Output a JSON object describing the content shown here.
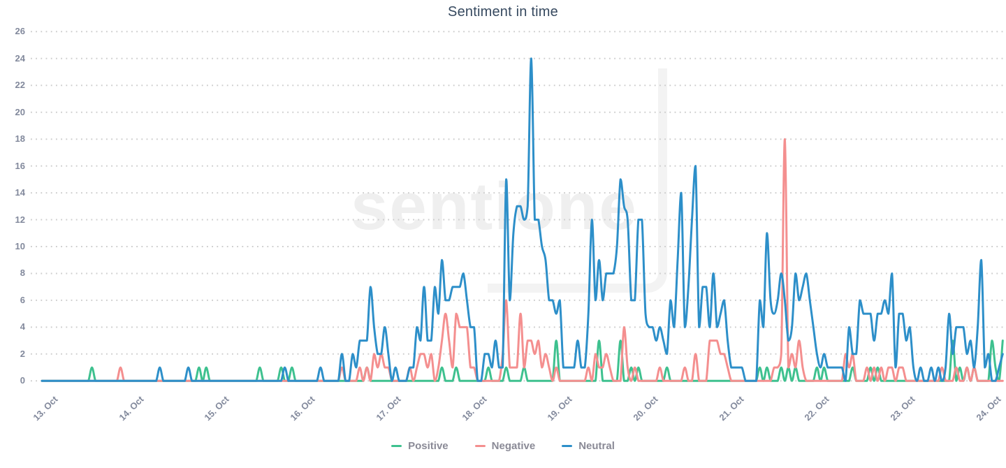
{
  "watermark": {
    "text": "sentione"
  },
  "chart_data": {
    "type": "line",
    "title": "Sentiment in time",
    "xlabel": "",
    "ylabel": "",
    "x_tick_labels": [
      "13. Oct",
      "14. Oct",
      "15. Oct",
      "16. Oct",
      "17. Oct",
      "18. Oct",
      "19. Oct",
      "20. Oct",
      "21. Oct",
      "22. Oct",
      "23. Oct",
      "24. Oct"
    ],
    "points_per_day": 24,
    "x_unit": "hour",
    "y_ticks": [
      0,
      2,
      4,
      6,
      8,
      10,
      12,
      14,
      16,
      18,
      20,
      22,
      24,
      26
    ],
    "ylim": [
      0,
      26
    ],
    "grid": "dotted-horizontal",
    "grid_color": "#cdcdcd",
    "legend_position": "bottom",
    "series": [
      {
        "name": "Positive",
        "color": "#3ec18f",
        "values": [
          0,
          0,
          0,
          0,
          0,
          0,
          0,
          0,
          0,
          0,
          0,
          0,
          0,
          0,
          1,
          0,
          0,
          0,
          0,
          0,
          0,
          0,
          0,
          0,
          0,
          0,
          0,
          0,
          0,
          0,
          0,
          0,
          0,
          0,
          0,
          0,
          0,
          0,
          0,
          0,
          0,
          0,
          0,
          0,
          1,
          0,
          1,
          0,
          0,
          0,
          0,
          0,
          0,
          0,
          0,
          0,
          0,
          0,
          0,
          0,
          0,
          1,
          0,
          0,
          0,
          0,
          0,
          1,
          0,
          0,
          1,
          0,
          0,
          0,
          0,
          0,
          0,
          0,
          0,
          0,
          0,
          0,
          0,
          0,
          0,
          0,
          0,
          0,
          0,
          0,
          0,
          1,
          0,
          0,
          0,
          0,
          0,
          0,
          0,
          0,
          0,
          0,
          0,
          0,
          0,
          0,
          0,
          0,
          0,
          0,
          0,
          0,
          1,
          0,
          0,
          0,
          1,
          0,
          0,
          0,
          0,
          0,
          0,
          0,
          0,
          1,
          0,
          0,
          0,
          0,
          1,
          0,
          0,
          0,
          0,
          1,
          0,
          0,
          0,
          0,
          0,
          0,
          0,
          0,
          3,
          0,
          0,
          0,
          0,
          0,
          0,
          0,
          0,
          0,
          0,
          0,
          3,
          0,
          0,
          0,
          0,
          0,
          3,
          0,
          0,
          1,
          0,
          1,
          0,
          0,
          0,
          0,
          0,
          0,
          0,
          1,
          0,
          0,
          0,
          0,
          0,
          0,
          0,
          0,
          0,
          0,
          0,
          0,
          0,
          0,
          0,
          0,
          0,
          0,
          0,
          0,
          0,
          0,
          0,
          0,
          0,
          1,
          0,
          1,
          0,
          0,
          0,
          1,
          0,
          1,
          0,
          1,
          0,
          0,
          0,
          0,
          0,
          1,
          0,
          1,
          0,
          0,
          0,
          0,
          0,
          0,
          0,
          1,
          0,
          0,
          0,
          0,
          1,
          0,
          1,
          0,
          0,
          0,
          0,
          0,
          0,
          0,
          0,
          0,
          0,
          0,
          0,
          0,
          0,
          0,
          0,
          0,
          0,
          0,
          0,
          3,
          0,
          1,
          0,
          1,
          0,
          1,
          0,
          0,
          0,
          0,
          3,
          1,
          0,
          3
        ]
      },
      {
        "name": "Negative",
        "color": "#f48f8f",
        "values": [
          0,
          0,
          0,
          0,
          0,
          0,
          0,
          0,
          0,
          0,
          0,
          0,
          0,
          0,
          0,
          0,
          0,
          0,
          0,
          0,
          0,
          0,
          1,
          0,
          0,
          0,
          0,
          0,
          0,
          0,
          0,
          0,
          0,
          0,
          0,
          0,
          0,
          0,
          0,
          0,
          0,
          0,
          0,
          0,
          0,
          0,
          0,
          0,
          0,
          0,
          0,
          0,
          0,
          0,
          0,
          0,
          0,
          0,
          0,
          0,
          0,
          0,
          0,
          0,
          0,
          0,
          0,
          0,
          0,
          0,
          0,
          0,
          0,
          0,
          0,
          0,
          0,
          0,
          0,
          0,
          0,
          0,
          0,
          0,
          1,
          0,
          0,
          0,
          0,
          1,
          0,
          1,
          0,
          2,
          1,
          2,
          1,
          1,
          0,
          0,
          0,
          0,
          0,
          1,
          0,
          1,
          2,
          2,
          1,
          2,
          0,
          1,
          3,
          5,
          3,
          1,
          5,
          4,
          4,
          4,
          1,
          1,
          0,
          0,
          0,
          0,
          0,
          0,
          0,
          2,
          6,
          1,
          1,
          1,
          5,
          1,
          3,
          3,
          2,
          3,
          1,
          2,
          1,
          0,
          1,
          0,
          0,
          0,
          0,
          0,
          0,
          0,
          0,
          1,
          0,
          2,
          1,
          1,
          2,
          1,
          0,
          0,
          0,
          4,
          1,
          0,
          1,
          0,
          0,
          0,
          0,
          0,
          0,
          1,
          0,
          0,
          0,
          0,
          0,
          0,
          1,
          0,
          0,
          2,
          0,
          0,
          0,
          3,
          3,
          3,
          2,
          2,
          1,
          0,
          0,
          0,
          0,
          0,
          0,
          0,
          0,
          0,
          0,
          0,
          0,
          1,
          1,
          2,
          18,
          1,
          2,
          1,
          3,
          1,
          0,
          0,
          0,
          0,
          0,
          0,
          0,
          0,
          0,
          0,
          0,
          2,
          1,
          2,
          0,
          0,
          0,
          1,
          0,
          1,
          0,
          1,
          0,
          1,
          1,
          0,
          1,
          1,
          0,
          0,
          0,
          0,
          0,
          0,
          0,
          0,
          0,
          0,
          1,
          0,
          0,
          0,
          1,
          0,
          0,
          1,
          0,
          1,
          0,
          0,
          0,
          0,
          0,
          0,
          0,
          0
        ]
      },
      {
        "name": "Neutral",
        "color": "#2d8fc9",
        "values": [
          0,
          0,
          0,
          0,
          0,
          0,
          0,
          0,
          0,
          0,
          0,
          0,
          0,
          0,
          0,
          0,
          0,
          0,
          0,
          0,
          0,
          0,
          0,
          0,
          0,
          0,
          0,
          0,
          0,
          0,
          0,
          0,
          0,
          1,
          0,
          0,
          0,
          0,
          0,
          0,
          0,
          1,
          0,
          0,
          0,
          0,
          0,
          0,
          0,
          0,
          0,
          0,
          0,
          0,
          0,
          0,
          0,
          0,
          0,
          0,
          0,
          0,
          0,
          0,
          0,
          0,
          0,
          0,
          1,
          0,
          0,
          0,
          0,
          0,
          0,
          0,
          0,
          0,
          1,
          0,
          0,
          0,
          0,
          0,
          2,
          0,
          0,
          2,
          1,
          3,
          3,
          3,
          7,
          4,
          2,
          2,
          4,
          2,
          0,
          1,
          0,
          0,
          0,
          1,
          1,
          4,
          3,
          7,
          3,
          3,
          7,
          5,
          9,
          6,
          6,
          7,
          7,
          7,
          8,
          6,
          4,
          4,
          0,
          0,
          2,
          2,
          1,
          3,
          1,
          1,
          15,
          6,
          11,
          13,
          13,
          12,
          13,
          24,
          12,
          12,
          10,
          9,
          6,
          6,
          5,
          6,
          1,
          1,
          1,
          1,
          3,
          1,
          1,
          5,
          12,
          6,
          9,
          6,
          8,
          8,
          8,
          10,
          15,
          13,
          12,
          6,
          6,
          12,
          12,
          5,
          4,
          4,
          3,
          4,
          3,
          2,
          6,
          4,
          9,
          14,
          4,
          7,
          12,
          16,
          4,
          7,
          7,
          4,
          8,
          4,
          5,
          6,
          3,
          1,
          1,
          1,
          1,
          0,
          0,
          0,
          0,
          6,
          4,
          11,
          6,
          5,
          6,
          8,
          6,
          3,
          4,
          8,
          6,
          7,
          8,
          6,
          4,
          2,
          1,
          2,
          1,
          1,
          1,
          1,
          1,
          0,
          4,
          2,
          2,
          6,
          5,
          5,
          5,
          3,
          5,
          5,
          6,
          5,
          8,
          1,
          5,
          5,
          3,
          4,
          1,
          0,
          1,
          0,
          0,
          1,
          0,
          1,
          0,
          1,
          5,
          2,
          4,
          4,
          4,
          2,
          3,
          1,
          4,
          9,
          1,
          2,
          0,
          0,
          1,
          2
        ]
      }
    ]
  }
}
